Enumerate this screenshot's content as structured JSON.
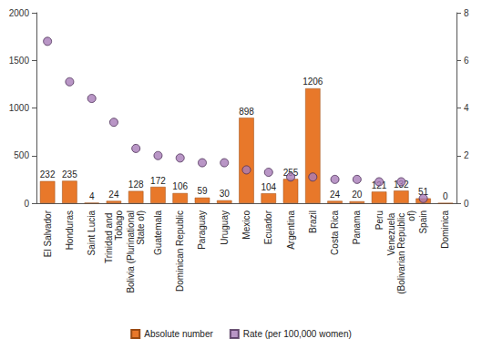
{
  "chart_data": {
    "type": "bar",
    "categories": [
      "El Salvador",
      "Honduras",
      "Saint Lucia",
      "Trinidad and Tobago",
      "Bolivia (Plurinational State of)",
      "Guatemala",
      "Dominican Republic",
      "Paraguay",
      "Uruguay",
      "Mexico",
      "Ecuador",
      "Argentina",
      "Brazil",
      "Costa Rica",
      "Panama",
      "Peru",
      "Venezuela (Bolivarian Republic of)",
      "Spain",
      "Dominica"
    ],
    "series": [
      {
        "name": "Absolute number",
        "type": "bar",
        "color": "#e8782a",
        "data_labels": true,
        "values": [
          232,
          235,
          4,
          24,
          128,
          172,
          106,
          59,
          30,
          898,
          104,
          255,
          1206,
          24,
          20,
          121,
          132,
          51,
          0
        ]
      },
      {
        "name": "Rate (per 100,000 women)",
        "type": "scatter",
        "axis": "y2",
        "color": "#a87cb8",
        "marker": "circle",
        "values": [
          6.8,
          5.1,
          4.4,
          3.4,
          2.3,
          2.0,
          1.9,
          1.7,
          1.7,
          1.4,
          1.3,
          1.1,
          1.1,
          1.0,
          1.0,
          0.9,
          0.9,
          0.2,
          null
        ]
      }
    ],
    "ylim": [
      0,
      2000
    ],
    "yticks": [
      0,
      500,
      1000,
      1500,
      2000
    ],
    "y2lim": [
      0,
      8
    ],
    "y2ticks": [
      0,
      2,
      4,
      6,
      8
    ],
    "grid": false,
    "legend": "bottom"
  }
}
